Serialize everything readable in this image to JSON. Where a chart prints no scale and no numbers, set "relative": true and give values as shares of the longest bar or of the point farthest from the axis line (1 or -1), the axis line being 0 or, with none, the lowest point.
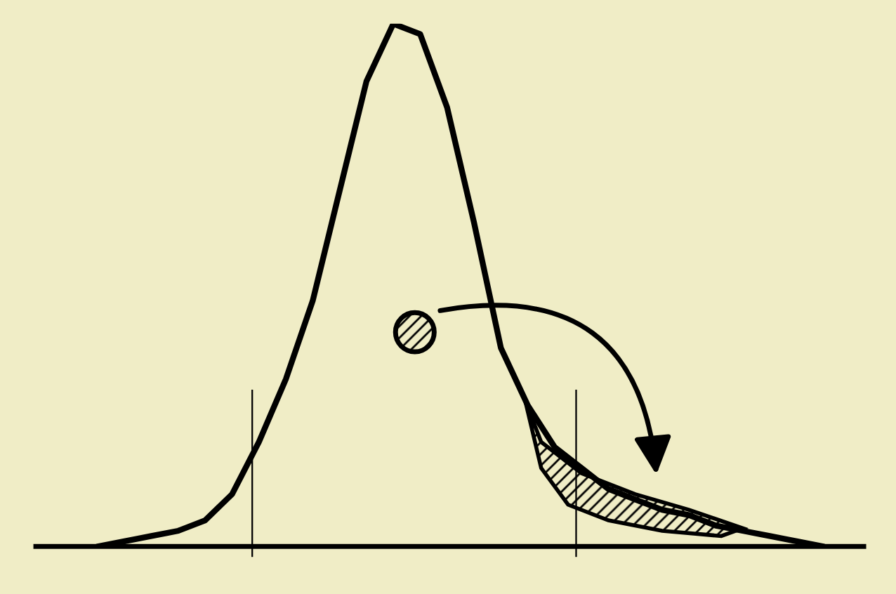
{
  "chart_data": {
    "type": "line",
    "relative": true,
    "categories": [
      null,
      null,
      null,
      null,
      null,
      null,
      null,
      null,
      null,
      null,
      null,
      null,
      null,
      null,
      null,
      null,
      null,
      null,
      null,
      null,
      null,
      null,
      null,
      null,
      null,
      null,
      null,
      null
    ],
    "series": [
      {
        "color": "#000000",
        "values": [
          0,
          0.01,
          0.02,
          0.03,
          0.05,
          0.1,
          0.2,
          0.32,
          0.47,
          0.68,
          0.89,
          1.0,
          0.98,
          0.84,
          0.62,
          0.38,
          0.27,
          0.19,
          0.15,
          0.11,
          0.09,
          0.07,
          0.06,
          0.04,
          0.03,
          0.02,
          0.01,
          0
        ]
      }
    ],
    "legend": false,
    "marker": "none",
    "line_style": "solid"
  }
}
